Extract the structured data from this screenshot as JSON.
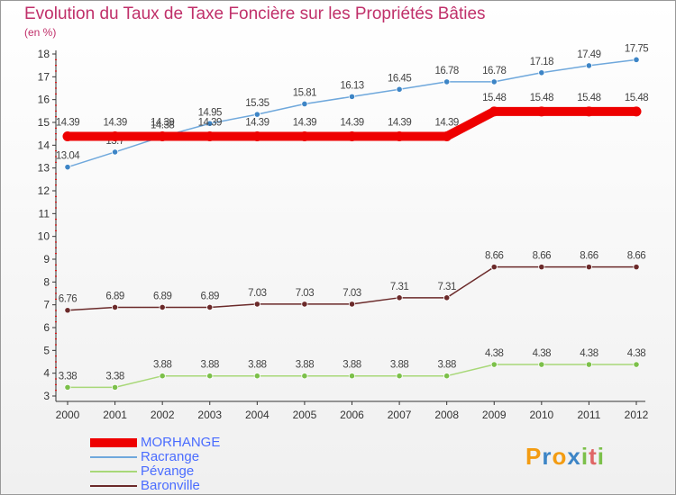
{
  "chart_data": {
    "type": "line",
    "title": "Evolution du Taux de Taxe Foncière sur les Propriétés Bâties",
    "unit_label": "(en %)",
    "xlabel": "",
    "ylabel": "",
    "ylim": [
      3,
      18
    ],
    "grid": false,
    "legend_position": "bottom-left",
    "categories": [
      "2000",
      "2001",
      "2002",
      "2003",
      "2004",
      "2005",
      "2006",
      "2007",
      "2008",
      "2009",
      "2010",
      "2011",
      "2012"
    ],
    "y_ticks": [
      "3",
      "4",
      "5",
      "6",
      "7",
      "8",
      "9",
      "10",
      "11",
      "12",
      "13",
      "14",
      "15",
      "16",
      "17",
      "18"
    ],
    "series": [
      {
        "name": "Racrange",
        "color": "#6fa8dc",
        "point_color": "#3d85c6",
        "width": 1.5,
        "values": [
          13.04,
          13.7,
          14.38,
          14.95,
          15.35,
          15.81,
          16.13,
          16.45,
          16.78,
          16.78,
          17.18,
          17.49,
          17.75
        ],
        "labels": [
          "13.04",
          "13.7",
          "14.38",
          "14.95",
          "15.35",
          "15.81",
          "16.13",
          "16.45",
          "16.78",
          "16.78",
          "17.18",
          "17.49",
          "17.75"
        ]
      },
      {
        "name": "Pévange",
        "color": "#a8d878",
        "point_color": "#7cc04a",
        "width": 1.5,
        "values": [
          3.38,
          3.38,
          3.88,
          3.88,
          3.88,
          3.88,
          3.88,
          3.88,
          3.88,
          4.38,
          4.38,
          4.38,
          4.38
        ],
        "labels": [
          "3.38",
          "3.38",
          "3.88",
          "3.88",
          "3.88",
          "3.88",
          "3.88",
          "3.88",
          "3.88",
          "4.38",
          "4.38",
          "4.38",
          "4.38"
        ]
      },
      {
        "name": "Baronville",
        "color": "#6b2a2a",
        "point_color": "#6b2a2a",
        "width": 1.5,
        "values": [
          6.76,
          6.89,
          6.89,
          6.89,
          7.03,
          7.03,
          7.03,
          7.31,
          7.31,
          8.66,
          8.66,
          8.66,
          8.66
        ],
        "labels": [
          "6.76",
          "6.89",
          "6.89",
          "6.89",
          "7.03",
          "7.03",
          "7.03",
          "7.31",
          "7.31",
          "8.66",
          "8.66",
          "8.66",
          "8.66"
        ]
      },
      {
        "name": "MORHANGE",
        "color": "#ee0000",
        "point_color": "#ee0000",
        "width": 10,
        "values": [
          14.39,
          14.39,
          14.39,
          14.39,
          14.39,
          14.39,
          14.39,
          14.39,
          14.39,
          15.48,
          15.48,
          15.48,
          15.48
        ],
        "labels": [
          "14.39",
          "14.39",
          "14.39",
          "14.39",
          "14.39",
          "14.39",
          "14.39",
          "14.39",
          "14.39",
          "15.48",
          "15.48",
          "15.48",
          "15.48"
        ]
      }
    ],
    "legend": [
      "MORHANGE",
      "Racrange",
      "Pévange",
      "Baronville"
    ]
  },
  "logo": {
    "letters": [
      "P",
      "r",
      "o",
      "x",
      "i",
      "t",
      "i"
    ],
    "colors": [
      "#f39c12",
      "#3d85c6",
      "#f39c12",
      "#3d85c6",
      "#7cc04a",
      "#e06666",
      "#7cc04a"
    ]
  }
}
